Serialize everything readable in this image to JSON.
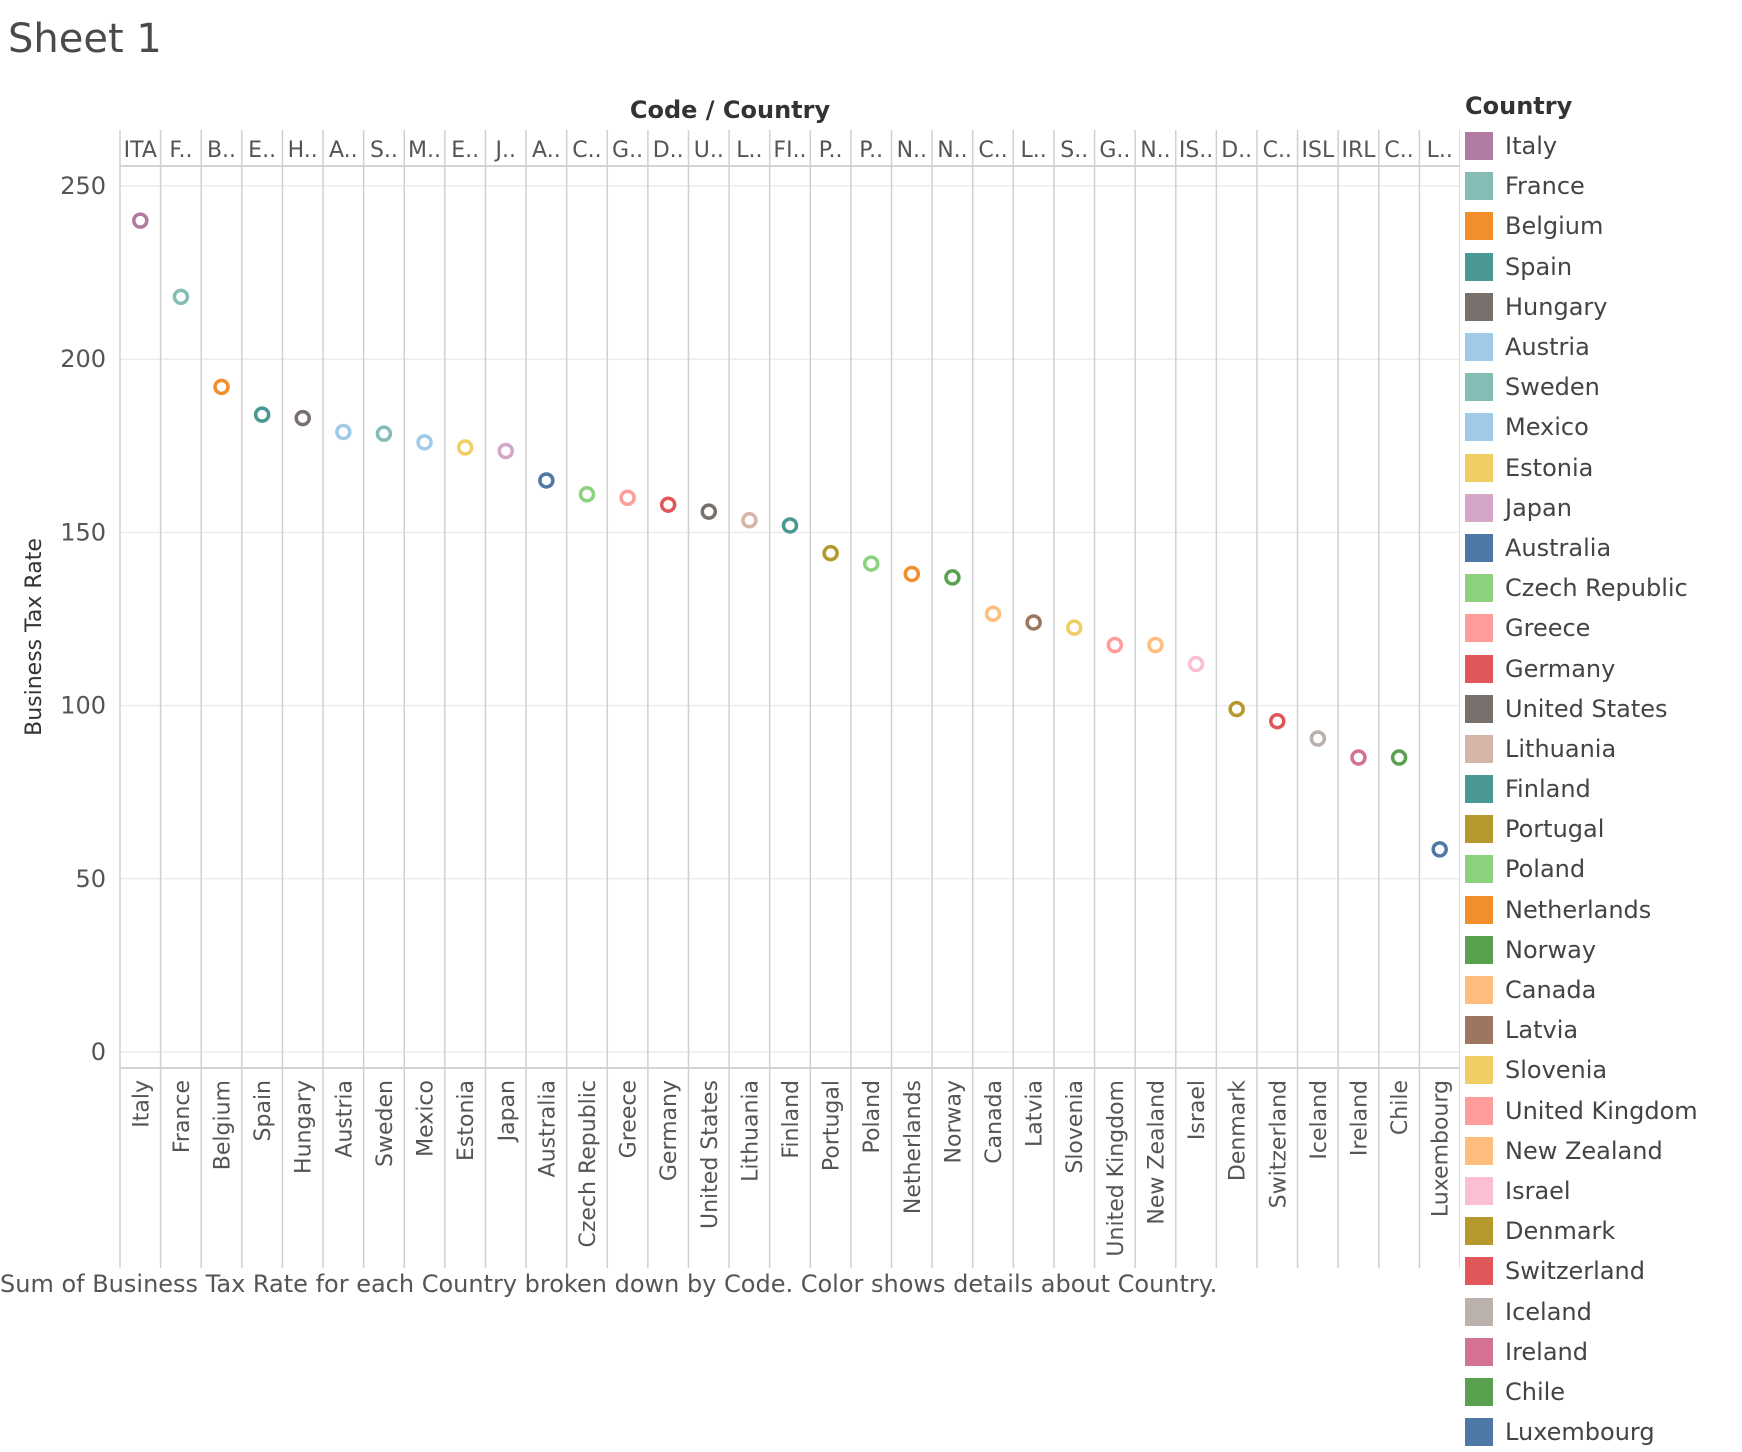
{
  "sheet": {
    "title": "Sheet 1"
  },
  "caption": "Sum of Business Tax Rate for each Country broken down by Code.  Color shows details about Country.",
  "legend": {
    "title": "Country"
  },
  "chart_data": {
    "type": "scatter",
    "header_label": "Code / Country",
    "ylabel": "Business Tax Rate",
    "ylim": [
      0,
      250
    ],
    "yticks": [
      0,
      50,
      100,
      150,
      200,
      250
    ],
    "grid": true,
    "legend_position": "right",
    "points": [
      {
        "country": "Italy",
        "code": "ITA",
        "value": 240,
        "color": "#b07aa1"
      },
      {
        "country": "France",
        "code": "F..",
        "value": 218,
        "color": "#86bcb6"
      },
      {
        "country": "Belgium",
        "code": "B..",
        "value": 192,
        "color": "#f28e2b"
      },
      {
        "country": "Spain",
        "code": "E..",
        "value": 184,
        "color": "#499894"
      },
      {
        "country": "Hungary",
        "code": "H..",
        "value": 183,
        "color": "#79706e"
      },
      {
        "country": "Austria",
        "code": "A..",
        "value": 179,
        "color": "#a0cbe8"
      },
      {
        "country": "Sweden",
        "code": "S..",
        "value": 178.5,
        "color": "#86bcb6"
      },
      {
        "country": "Mexico",
        "code": "M..",
        "value": 176,
        "color": "#a0cbe8"
      },
      {
        "country": "Estonia",
        "code": "E..",
        "value": 174.5,
        "color": "#f1ce63"
      },
      {
        "country": "Japan",
        "code": "J..",
        "value": 173.5,
        "color": "#d4a6c8"
      },
      {
        "country": "Australia",
        "code": "A..",
        "value": 165,
        "color": "#4e79a7"
      },
      {
        "country": "Czech Republic",
        "code": "C..",
        "value": 161,
        "color": "#8cd17d"
      },
      {
        "country": "Greece",
        "code": "G..",
        "value": 160,
        "color": "#ff9d9a"
      },
      {
        "country": "Germany",
        "code": "D..",
        "value": 158,
        "color": "#e15759"
      },
      {
        "country": "United States",
        "code": "U..",
        "value": 156,
        "color": "#79706e"
      },
      {
        "country": "Lithuania",
        "code": "L..",
        "value": 153.5,
        "color": "#d7b5a6"
      },
      {
        "country": "Finland",
        "code": "FI..",
        "value": 152,
        "color": "#499894"
      },
      {
        "country": "Portugal",
        "code": "P..",
        "value": 144,
        "color": "#b6992d"
      },
      {
        "country": "Poland",
        "code": "P..",
        "value": 141,
        "color": "#8cd17d"
      },
      {
        "country": "Netherlands",
        "code": "N..",
        "value": 138,
        "color": "#f28e2b"
      },
      {
        "country": "Norway",
        "code": "N..",
        "value": 137,
        "color": "#59a14f"
      },
      {
        "country": "Canada",
        "code": "C..",
        "value": 126.5,
        "color": "#ffbe7d"
      },
      {
        "country": "Latvia",
        "code": "L..",
        "value": 124,
        "color": "#9d7660"
      },
      {
        "country": "Slovenia",
        "code": "S..",
        "value": 122.5,
        "color": "#f1ce63"
      },
      {
        "country": "United Kingdom",
        "code": "G..",
        "value": 117.5,
        "color": "#ff9d9a"
      },
      {
        "country": "New Zealand",
        "code": "N..",
        "value": 117.5,
        "color": "#ffbe7d"
      },
      {
        "country": "Israel",
        "code": "IS..",
        "value": 112,
        "color": "#fabfd2"
      },
      {
        "country": "Denmark",
        "code": "D..",
        "value": 99,
        "color": "#b6992d"
      },
      {
        "country": "Switzerland",
        "code": "C..",
        "value": 95.5,
        "color": "#e15759"
      },
      {
        "country": "Iceland",
        "code": "ISL",
        "value": 90.5,
        "color": "#bab0ac"
      },
      {
        "country": "Ireland",
        "code": "IRL",
        "value": 85,
        "color": "#d37295"
      },
      {
        "country": "Chile",
        "code": "C..",
        "value": 85,
        "color": "#59a14f"
      },
      {
        "country": "Luxembourg",
        "code": "L..",
        "value": 58.5,
        "color": "#4e79a7"
      }
    ]
  }
}
